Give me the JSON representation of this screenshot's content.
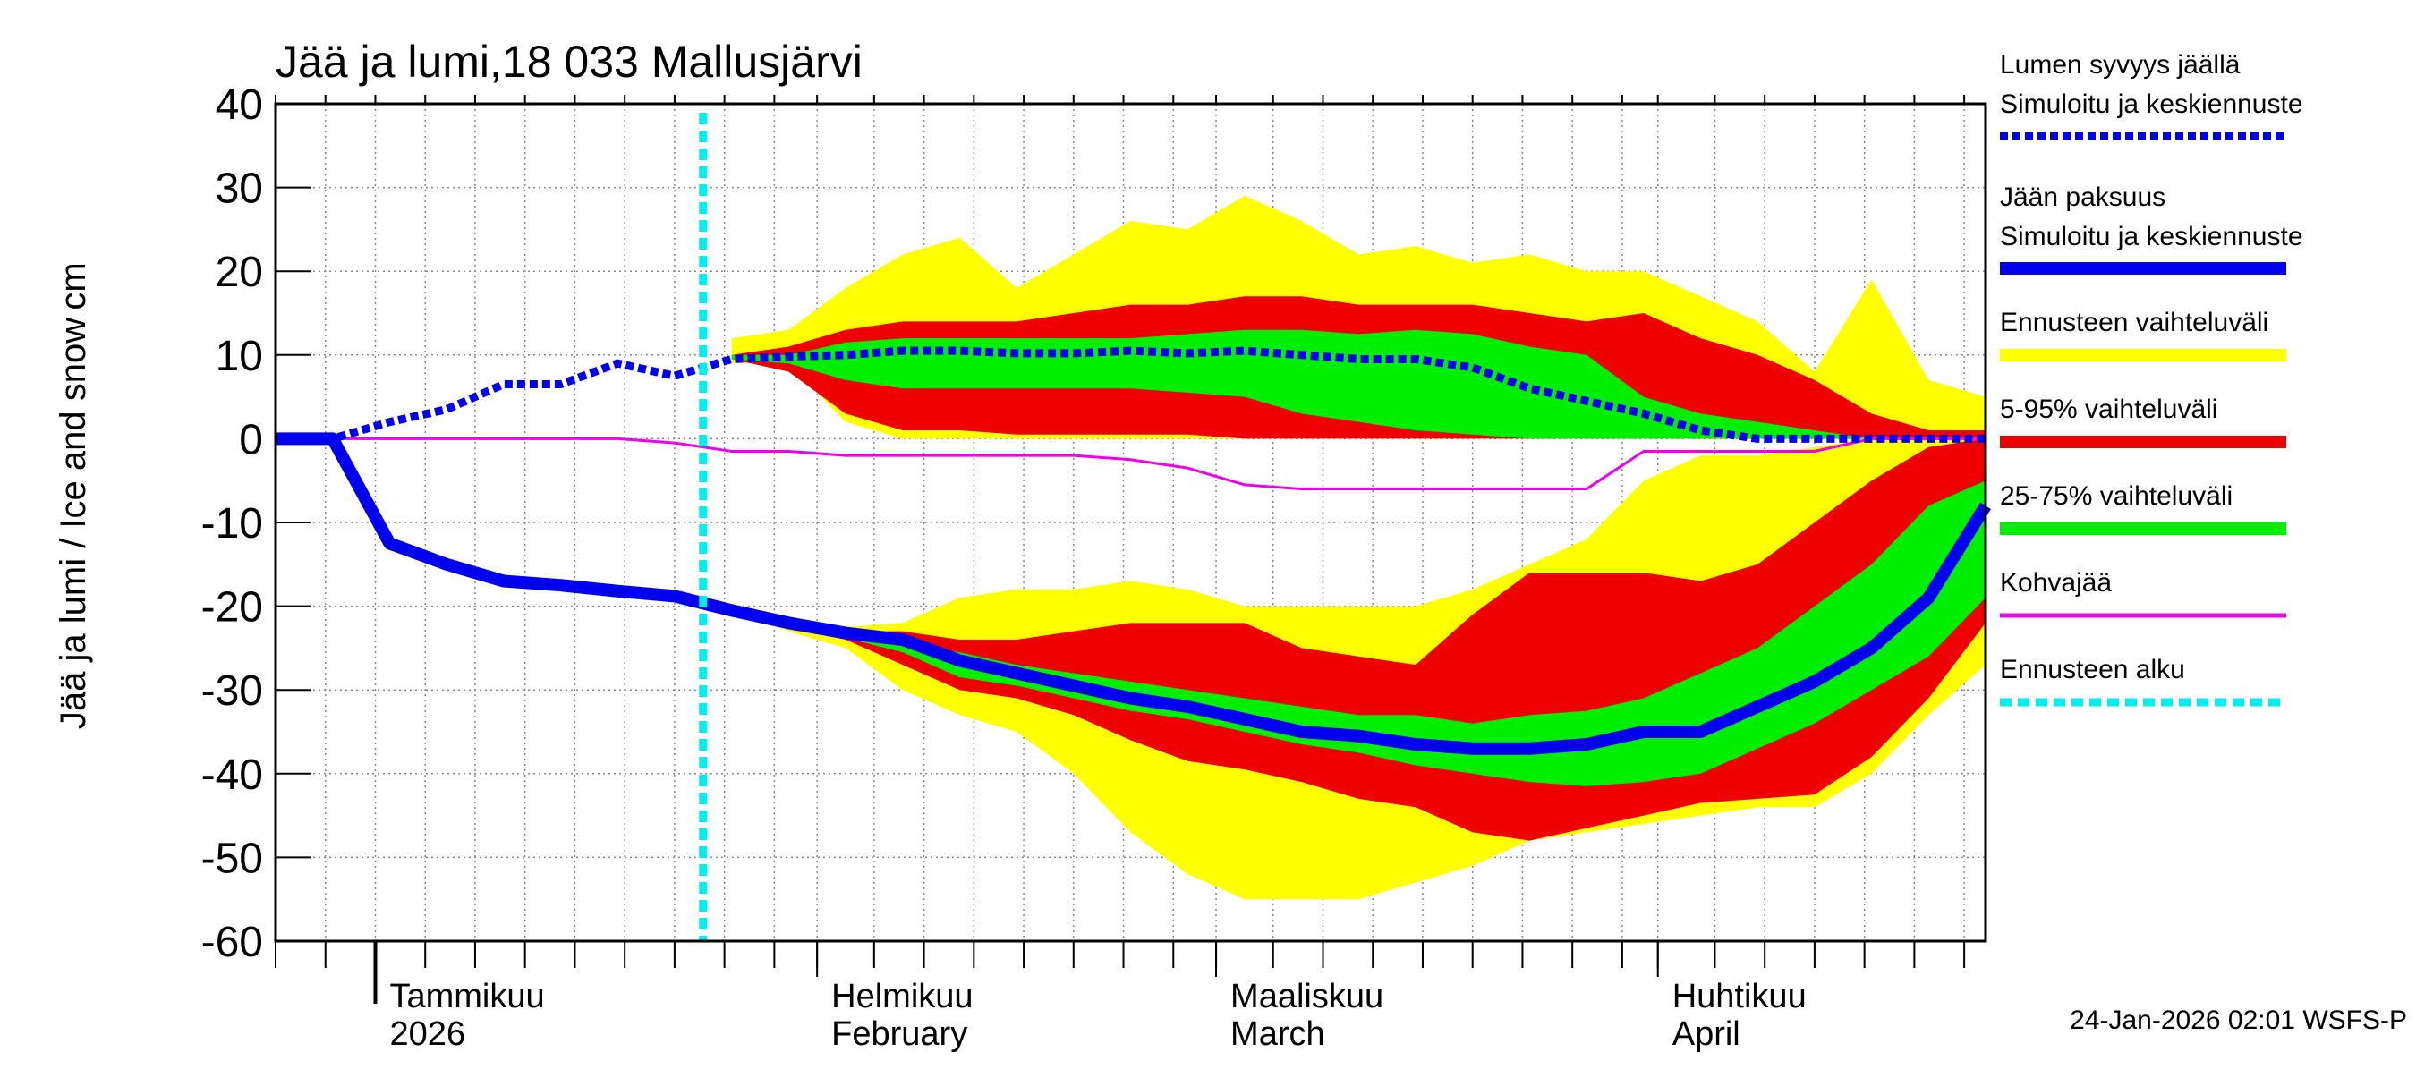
{
  "chart_data": {
    "type": "ice-forecast",
    "title": "Jää ja lumi,18 033 Mallusjärvi",
    "ylabel": "Jää ja lumi / Ice and snow",
    "yunit": "cm",
    "footer": "24-Jan-2026 02:01 WSFS-P",
    "grid": true,
    "ylim": [
      -60,
      40
    ],
    "yticks": [
      -60,
      -50,
      -40,
      -30,
      -20,
      -10,
      0,
      10,
      20,
      30,
      40
    ],
    "xlim": [
      0,
      120
    ],
    "xticks": [
      {
        "value": 7,
        "label": "Tammikuu"
      },
      {
        "value": 38,
        "label": "Helmikuu"
      },
      {
        "value": 66,
        "label": "Maaliskuu"
      },
      {
        "value": 97,
        "label": "Huhtikuu"
      }
    ],
    "xtick_sublabels": [
      "2026",
      "February",
      "March",
      "April"
    ],
    "xminor": [
      0,
      3.5,
      7,
      10.5,
      14,
      17.5,
      21,
      24.5,
      28,
      31.5,
      35,
      38,
      42,
      45.5,
      49,
      52.5,
      56,
      59.5,
      63,
      66,
      70,
      73.5,
      77,
      80.5,
      84,
      87.5,
      91,
      94.5,
      97,
      101,
      104.5,
      108,
      111.5,
      115,
      118.5
    ],
    "forecast_start": 30,
    "forecast_start_name": "Ennusteen alku",
    "forecast_color": "#00eeee",
    "x": [
      0,
      4,
      8,
      12,
      16,
      20,
      24,
      28,
      32,
      36,
      40,
      44,
      48,
      52,
      56,
      60,
      64,
      68,
      72,
      76,
      80,
      84,
      88,
      92,
      96,
      100,
      104,
      108,
      112,
      116,
      120
    ],
    "series": [
      {
        "name": "Lumen syvyys jäällä",
        "subname": "Simuloitu ja keskiennuste",
        "color": "#0000ee",
        "style": "dotted",
        "values": [
          0,
          0,
          2,
          3.5,
          6.5,
          6.5,
          9,
          7.5,
          9.5,
          9.8,
          10,
          10.5,
          10.5,
          10.2,
          10.2,
          10.5,
          10.2,
          10.5,
          10,
          9.5,
          9.5,
          8.5,
          6,
          4.5,
          3,
          1,
          0,
          0,
          0,
          0,
          0
        ]
      },
      {
        "name": "Jään paksuus",
        "subname": "Simuloitu ja keskiennuste",
        "color": "#0000ee",
        "style": "thick",
        "values": [
          0,
          0,
          -12.5,
          -15,
          -17,
          -17.5,
          -18.2,
          -18.8,
          -20.5,
          -22,
          -23.2,
          -24,
          -26.5,
          -28,
          -29.5,
          -31,
          -32,
          -33.5,
          -35,
          -35.5,
          -36.5,
          -37,
          -37,
          -36.5,
          -35,
          -35,
          -32,
          -29,
          -25,
          -19,
          -8
        ]
      },
      {
        "name": "Kohvajää",
        "color": "#ee00ee",
        "style": "thin",
        "values": [
          0,
          0,
          0,
          0,
          0,
          0,
          0,
          -0.5,
          -1.5,
          -1.5,
          -2,
          -2,
          -2,
          -2,
          -2,
          -2.5,
          -3.5,
          -5.5,
          -6,
          -6,
          -6,
          -6,
          -6,
          -6,
          -1.5,
          -1.5,
          -1.5,
          -1.5,
          0,
          0,
          0
        ]
      }
    ],
    "bands": [
      {
        "name": "Ennusteen vaihteluväli",
        "color": "#ffff00",
        "snow_high": [
          null,
          null,
          null,
          null,
          null,
          null,
          null,
          null,
          12,
          13,
          18,
          22,
          24,
          18,
          22,
          26,
          25,
          29,
          26,
          22,
          23,
          21,
          22,
          20,
          20,
          17,
          14,
          8,
          19,
          7,
          5
        ],
        "snow_low": [
          null,
          null,
          null,
          null,
          null,
          null,
          null,
          null,
          9,
          9,
          2,
          0,
          0,
          0,
          0,
          0,
          0,
          0,
          0,
          0,
          0,
          0,
          0,
          0,
          0,
          0,
          0,
          0,
          0,
          0,
          0
        ],
        "ice_high": [
          null,
          null,
          null,
          null,
          null,
          null,
          null,
          null,
          -20.5,
          -22,
          -22.5,
          -22,
          -19,
          -18,
          -18,
          -17,
          -18,
          -20,
          -20,
          -20,
          -20,
          -18,
          -15,
          -12,
          -5,
          -2,
          -2,
          -1,
          0,
          0,
          0
        ],
        "ice_low": [
          null,
          null,
          null,
          null,
          null,
          null,
          null,
          null,
          -20.5,
          -23,
          -25,
          -30,
          -33,
          -35,
          -40,
          -47,
          -52,
          -55,
          -55,
          -55,
          -53,
          -51,
          -48,
          -47,
          -46,
          -45,
          -44,
          -44,
          -40,
          -33,
          -27
        ]
      },
      {
        "name": "5-95% vaihteluväli",
        "color": "#ee0000",
        "snow_high": [
          null,
          null,
          null,
          null,
          null,
          null,
          null,
          null,
          10,
          11,
          13,
          14,
          14,
          14,
          15,
          16,
          16,
          17,
          17,
          16,
          16,
          16,
          15,
          14,
          15,
          12,
          10,
          7,
          3,
          1,
          1
        ],
        "snow_low": [
          null,
          null,
          null,
          null,
          null,
          null,
          null,
          null,
          9.5,
          8,
          3,
          1,
          1,
          0.5,
          0.5,
          0.5,
          0.5,
          0,
          0,
          0,
          0,
          0,
          0,
          0,
          0,
          0,
          0,
          0,
          0,
          0,
          0
        ],
        "ice_high": [
          null,
          null,
          null,
          null,
          null,
          null,
          null,
          null,
          -20.5,
          -22,
          -23,
          -23,
          -24,
          -24,
          -23,
          -22,
          -22,
          -22,
          -25,
          -26,
          -27,
          -21,
          -16,
          -16,
          -16,
          -17,
          -15,
          -10,
          -5,
          -1,
          0
        ],
        "ice_low": [
          null,
          null,
          null,
          null,
          null,
          null,
          null,
          null,
          -20.5,
          -22.5,
          -24,
          -27,
          -30,
          -31,
          -33,
          -36,
          -38.5,
          -39.5,
          -41,
          -43,
          -44,
          -47,
          -48,
          -46.5,
          -45,
          -43.5,
          -43,
          -42.5,
          -38,
          -31,
          -22
        ]
      },
      {
        "name": "25-75% vaihteluväli",
        "color": "#00ee00",
        "snow_high": [
          null,
          null,
          null,
          null,
          null,
          null,
          null,
          null,
          10,
          10,
          11.5,
          12,
          12,
          12,
          12,
          12,
          12.5,
          13,
          13,
          12.5,
          13,
          12.5,
          11,
          10,
          5,
          3,
          2,
          1,
          0,
          0,
          0
        ],
        "snow_low": [
          null,
          null,
          null,
          null,
          null,
          null,
          null,
          null,
          9.5,
          9,
          7,
          6,
          6,
          6,
          6,
          6,
          5.5,
          5,
          3,
          2,
          1,
          0.5,
          0,
          0,
          0,
          0,
          0,
          0,
          0,
          0,
          0
        ],
        "ice_high": [
          null,
          null,
          null,
          null,
          null,
          null,
          null,
          null,
          -20.5,
          -22,
          -23.5,
          -24.5,
          -25.5,
          -27,
          -28,
          -29,
          -30,
          -31,
          -32,
          -33,
          -33,
          -34,
          -33,
          -32.5,
          -31,
          -28,
          -25,
          -20,
          -15,
          -8,
          -5
        ],
        "ice_low": [
          null,
          null,
          null,
          null,
          null,
          null,
          null,
          null,
          -20.5,
          -22.2,
          -23.8,
          -25.5,
          -28.5,
          -29.5,
          -31,
          -32.5,
          -33.5,
          -35,
          -36.5,
          -37.5,
          -39,
          -40,
          -41,
          -41.5,
          -41,
          -40,
          -37,
          -34,
          -30,
          -26,
          -19
        ]
      }
    ]
  }
}
